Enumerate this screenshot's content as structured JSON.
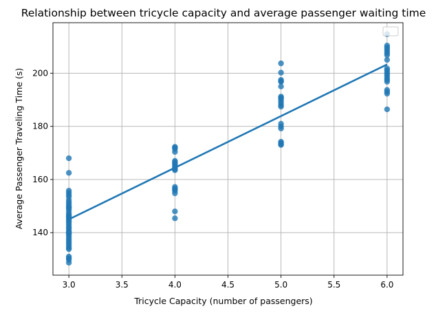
{
  "chart_data": {
    "type": "scatter",
    "title": "Relationship between tricycle capacity and average passenger waiting time",
    "xlabel": "Tricycle Capacity (number of passengers)",
    "ylabel": "Average Passenger Traveling Time (s)",
    "xlim": [
      2.85,
      6.15
    ],
    "ylim": [
      124,
      219
    ],
    "xticks": [
      3.0,
      3.5,
      4.0,
      4.5,
      5.0,
      5.5,
      6.0
    ],
    "yticks": [
      140,
      160,
      180,
      200
    ],
    "grid": true,
    "legend": "upper-right (empty)",
    "colors": {
      "points": "#1f77b4",
      "line": "#1f77b4"
    },
    "series": [
      {
        "kind": "scatter",
        "x": [
          3,
          3,
          3,
          3,
          3,
          3,
          3,
          3,
          3,
          3,
          3,
          3,
          3,
          3,
          3,
          3,
          3,
          3,
          3,
          3,
          3,
          3,
          3,
          3,
          3,
          3,
          3,
          3,
          3,
          3,
          3,
          3,
          3,
          3,
          3,
          3,
          3,
          3,
          3,
          3,
          4,
          4,
          4,
          4,
          4,
          4,
          4,
          4,
          4,
          4,
          4,
          4,
          4,
          4,
          4,
          4,
          4,
          4,
          4,
          4,
          5,
          5,
          5,
          5,
          5,
          5,
          5,
          5,
          5,
          5,
          5,
          5,
          5,
          5,
          5,
          5,
          5,
          5,
          5,
          5,
          6,
          6,
          6,
          6,
          6,
          6,
          6,
          6,
          6,
          6,
          6,
          6,
          6,
          6,
          6,
          6,
          6,
          6,
          6,
          6
        ],
        "y": [
          168.0,
          162.5,
          155.8,
          155.0,
          154.2,
          153.5,
          152.3,
          151.5,
          150.8,
          150.0,
          149.2,
          148.5,
          147.6,
          146.8,
          146.0,
          145.5,
          145.0,
          144.4,
          143.8,
          143.0,
          141.6,
          140.8,
          140.2,
          139.5,
          138.8,
          138.0,
          137.2,
          136.5,
          135.8,
          135.0,
          134.3,
          133.8,
          131.0,
          130.4,
          129.8,
          128.7,
          149.5,
          146.3,
          142.2,
          139.8,
          172.3,
          172.0,
          171.5,
          170.4,
          167.0,
          166.6,
          166.1,
          165.8,
          165.2,
          164.7,
          164.2,
          163.8,
          157.2,
          156.7,
          156.2,
          155.8,
          154.8,
          148.0,
          145.4,
          163.5,
          203.7,
          200.2,
          197.5,
          196.8,
          195.0,
          191.2,
          190.4,
          189.6,
          188.8,
          188.0,
          187.4,
          181.0,
          180.0,
          179.2,
          174.2,
          173.8,
          173.3,
          173.0,
          197.0,
          190.8,
          214.7,
          210.4,
          209.7,
          209.0,
          208.3,
          207.5,
          206.8,
          201.8,
          201.1,
          200.4,
          199.7,
          199.0,
          198.2,
          197.5,
          196.8,
          193.7,
          193.0,
          192.3,
          186.4,
          205.0
        ]
      },
      {
        "kind": "regression-line",
        "x": [
          3.0,
          6.0
        ],
        "y": [
          145.0,
          203.3
        ]
      }
    ]
  }
}
